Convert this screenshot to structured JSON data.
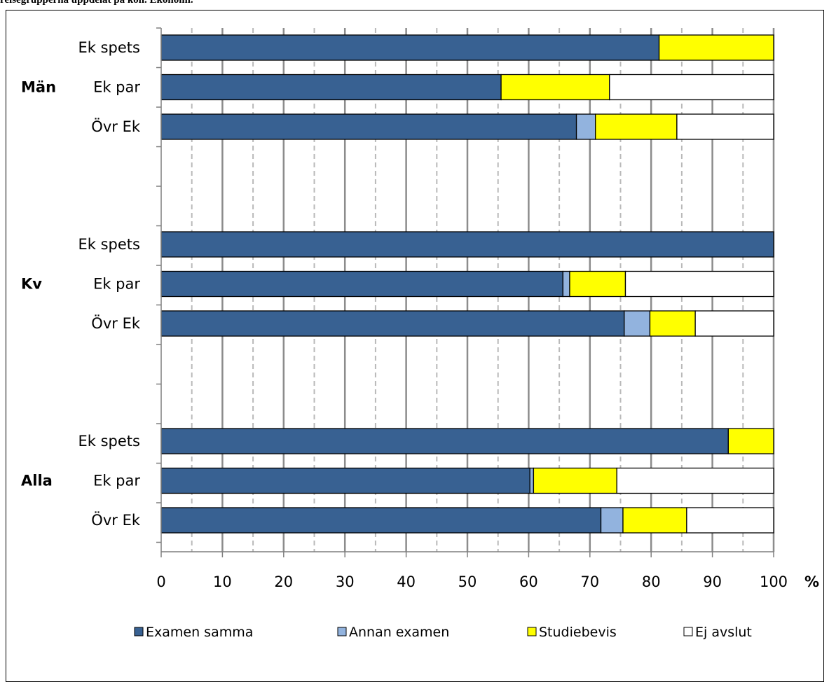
{
  "page": {
    "caption": "reisegrupperna uppdelat på kön. Ekonomi."
  },
  "chart_data": {
    "type": "bar",
    "orientation": "horizontal",
    "stacked": true,
    "unit_label": "%",
    "xlim": [
      0,
      100
    ],
    "x_ticks": [
      0,
      10,
      20,
      30,
      40,
      50,
      60,
      70,
      80,
      90,
      100
    ],
    "grid": "major solid, minor dashed",
    "legend_position": "bottom",
    "groups": [
      {
        "label": "Män",
        "bars": [
          {
            "category": "Ek spets",
            "values": [
              81.3,
              0,
              18.7,
              0
            ]
          },
          {
            "category": "Ek par",
            "values": [
              55.5,
              0,
              17.7,
              26.8
            ]
          },
          {
            "category": "Övr Ek",
            "values": [
              67.8,
              3.1,
              13.3,
              15.8
            ]
          }
        ]
      },
      {
        "label": "Kv",
        "bars": [
          {
            "category": "Ek spets",
            "values": [
              100,
              0,
              0,
              0
            ]
          },
          {
            "category": "Ek par",
            "values": [
              65.6,
              1.1,
              9.1,
              24.2
            ]
          },
          {
            "category": "Övr Ek",
            "values": [
              75.6,
              4.2,
              7.4,
              12.8
            ]
          }
        ]
      },
      {
        "label": "Alla",
        "bars": [
          {
            "category": "Ek spets",
            "values": [
              92.6,
              0,
              7.4,
              0
            ]
          },
          {
            "category": "Ek par",
            "values": [
              60.2,
              0.6,
              13.6,
              25.6
            ]
          },
          {
            "category": "Övr Ek",
            "values": [
              71.8,
              3.6,
              10.4,
              14.2
            ]
          }
        ]
      }
    ],
    "series": [
      {
        "name": "Examen samma",
        "color": "#386192"
      },
      {
        "name": "Annan examen",
        "color": "#92b3de"
      },
      {
        "name": "Studiebevis",
        "color": "#ffff00"
      },
      {
        "name": "Ej avslut",
        "color": "#ffffff"
      }
    ]
  }
}
